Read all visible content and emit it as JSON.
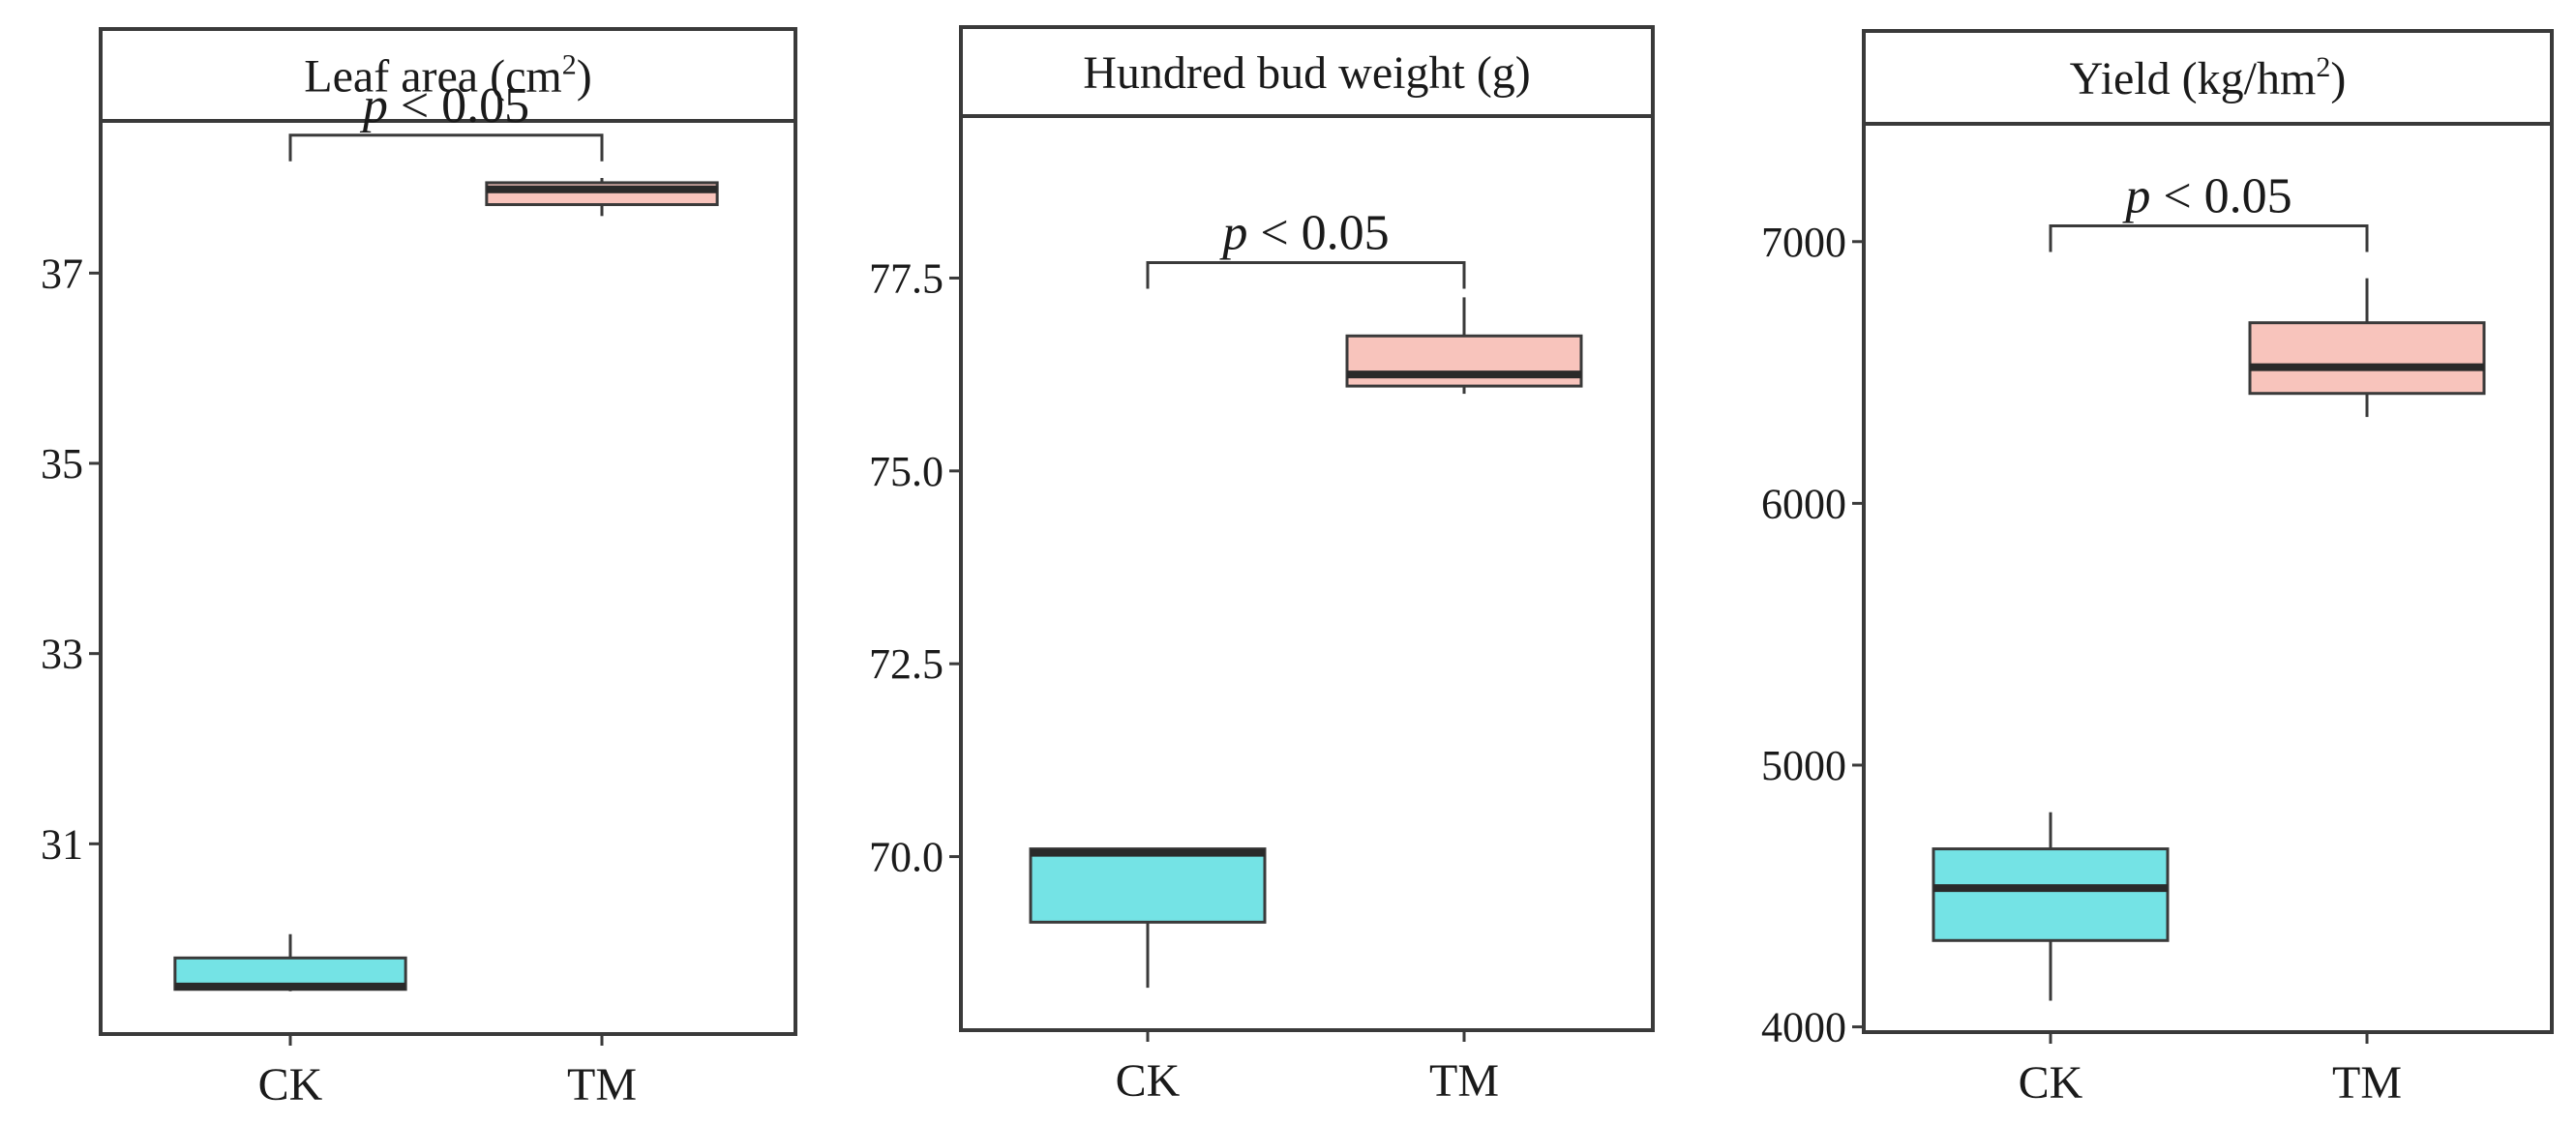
{
  "chart_data": [
    {
      "type": "box",
      "title": "Leaf area (cm",
      "title_sup": "2",
      "title_end": ")",
      "categories": [
        "CK",
        "TM"
      ],
      "yticks": [
        31,
        33,
        35,
        37
      ],
      "ylim": [
        29.0,
        38.6
      ],
      "boxes": [
        {
          "name": "CK",
          "min": 29.45,
          "q1": 29.47,
          "median": 29.5,
          "q3": 29.8,
          "max": 30.05,
          "color": "#74e3e5"
        },
        {
          "name": "TM",
          "min": 37.6,
          "q1": 37.72,
          "median": 37.88,
          "q3": 37.95,
          "max": 38.0,
          "color": "#f8c4bc"
        }
      ],
      "bracket": {
        "y": 38.45,
        "label_italic": "p",
        "label_rest": " < 0.05"
      }
    },
    {
      "type": "box",
      "title": "Hundred bud weight (g)",
      "title_sup": "",
      "title_end": "",
      "categories": [
        "CK",
        "TM"
      ],
      "yticks": [
        "70.0",
        "72.5",
        "75.0",
        "77.5"
      ],
      "ylim": [
        67.75,
        79.6
      ],
      "boxes": [
        {
          "name": "CK",
          "min": 68.3,
          "q1": 69.15,
          "median": 70.05,
          "q3": 70.1,
          "max": 70.1,
          "color": "#74e3e5"
        },
        {
          "name": "TM",
          "min": 76.0,
          "q1": 76.1,
          "median": 76.25,
          "q3": 76.75,
          "max": 77.25,
          "color": "#f8c4bc"
        }
      ],
      "bracket": {
        "y": 77.7,
        "label_italic": "p",
        "label_rest": " < 0.05"
      }
    },
    {
      "type": "box",
      "title": "Yield (kg/hm",
      "title_sup": "2",
      "title_end": ")",
      "categories": [
        "CK",
        "TM"
      ],
      "yticks": [
        4000,
        5000,
        6000,
        7000
      ],
      "ylim": [
        3980,
        7450
      ],
      "boxes": [
        {
          "name": "CK",
          "min": 4100,
          "q1": 4330,
          "median": 4530,
          "q3": 4680,
          "max": 4820,
          "color": "#74e3e5"
        },
        {
          "name": "TM",
          "min": 6330,
          "q1": 6420,
          "median": 6520,
          "q3": 6690,
          "max": 6860,
          "color": "#f8c4bc"
        }
      ],
      "bracket": {
        "y": 7060,
        "label_italic": "p",
        "label_rest": " < 0.05"
      }
    }
  ]
}
